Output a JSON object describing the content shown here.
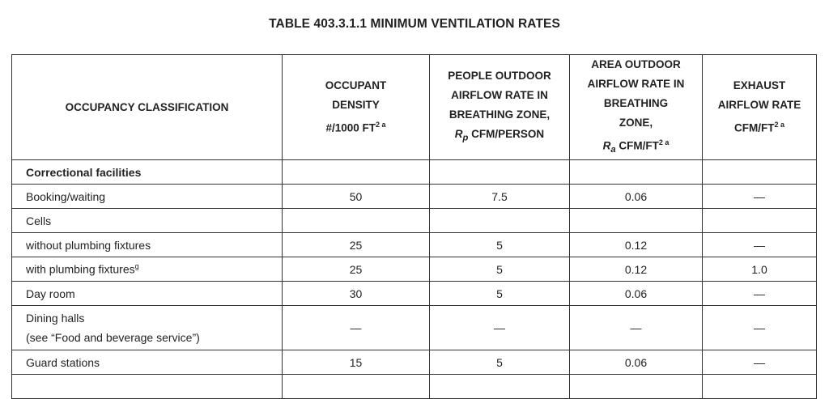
{
  "title": "TABLE 403.3.1.1 MINIMUM VENTILATION RATES",
  "headers": {
    "occupancy": "OCCUPANCY CLASSIFICATION",
    "density_l1": "OCCUPANT",
    "density_l2": "DENSITY",
    "density_l3": "#/1000 FT",
    "density_sup": "2 a",
    "people_l1": "PEOPLE OUTDOOR",
    "people_l2": "AIRFLOW RATE IN",
    "people_l3": "BREATHING ZONE,",
    "people_var": "R",
    "people_sub": "p",
    "people_unit": " CFM/PERSON",
    "area_l1": "AREA OUTDOOR",
    "area_l2": "AIRFLOW RATE IN",
    "area_l3": "BREATHING",
    "area_l4": "ZONE,",
    "area_var": "R",
    "area_sub": "a",
    "area_unit": " CFM/FT",
    "area_sup": "2 a",
    "exhaust_l1": "EXHAUST",
    "exhaust_l2": "AIRFLOW RATE",
    "exhaust_l3": "CFM/FT",
    "exhaust_sup": "2 a"
  },
  "rows": [
    {
      "name": "Correctional facilities",
      "density": "",
      "people": "",
      "area": "",
      "exhaust": ""
    },
    {
      "name": "Booking/waiting",
      "density": "50",
      "people": "7.5",
      "area": "0.06",
      "exhaust": "—"
    },
    {
      "name": "Cells",
      "density": "",
      "people": "",
      "area": "",
      "exhaust": ""
    },
    {
      "name": "without plumbing fixtures",
      "density": "25",
      "people": "5",
      "area": "0.12",
      "exhaust": "—"
    },
    {
      "name": "with plumbing fixtures",
      "name_sup": "g",
      "density": "25",
      "people": "5",
      "area": "0.12",
      "exhaust": "1.0"
    },
    {
      "name": "Day room",
      "density": "30",
      "people": "5",
      "area": "0.06",
      "exhaust": "—"
    },
    {
      "name": "Dining halls",
      "name_l2": "(see “Food and beverage service”)",
      "density": "—",
      "people": "—",
      "area": "—",
      "exhaust": "—"
    },
    {
      "name": "Guard stations",
      "density": "15",
      "people": "5",
      "area": "0.06",
      "exhaust": "—"
    }
  ]
}
